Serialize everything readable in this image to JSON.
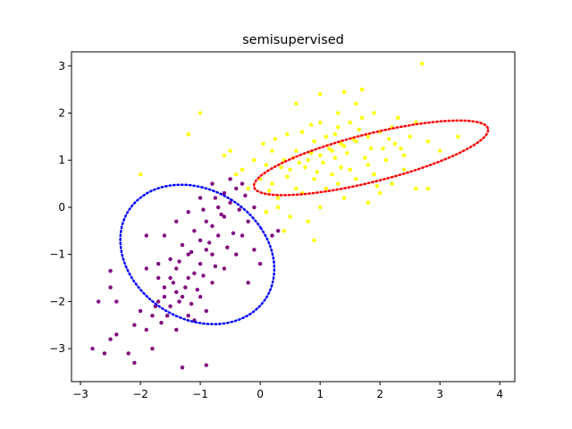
{
  "chart_data": {
    "type": "scatter",
    "title": "semisupervised",
    "xlabel": "",
    "ylabel": "",
    "xlim": [
      -3.15,
      4.25
    ],
    "ylim": [
      -3.7,
      3.3
    ],
    "xticks": [
      -3,
      -2,
      -1,
      0,
      1,
      2,
      3,
      4
    ],
    "yticks": [
      -3,
      -2,
      -1,
      0,
      1,
      2,
      3
    ],
    "grid": false,
    "legend": "none",
    "series": [
      {
        "color": "#800080",
        "values": [
          [
            -1.6,
            -1.9
          ],
          [
            -1.4,
            -1.8
          ],
          [
            -1.2,
            -1.5
          ],
          [
            -1.0,
            -1.2
          ],
          [
            -0.8,
            -1.0
          ],
          [
            -1.5,
            -2.1
          ],
          [
            -1.3,
            -1.9
          ],
          [
            -1.1,
            -1.4
          ],
          [
            -0.9,
            -0.9
          ],
          [
            -0.7,
            -0.6
          ],
          [
            -1.8,
            -2.3
          ],
          [
            -1.7,
            -2.0
          ],
          [
            -1.6,
            -1.7
          ],
          [
            -1.4,
            -1.3
          ],
          [
            -1.2,
            -1.0
          ],
          [
            -1.0,
            -0.7
          ],
          [
            -0.8,
            -0.4
          ],
          [
            -0.6,
            -0.2
          ],
          [
            -0.5,
            0.1
          ],
          [
            -0.4,
            0.4
          ],
          [
            -1.9,
            -2.6
          ],
          [
            -2.0,
            -2.2
          ],
          [
            -2.1,
            -2.5
          ],
          [
            -1.7,
            -1.5
          ],
          [
            -1.5,
            -1.1
          ],
          [
            -1.3,
            -0.8
          ],
          [
            -1.1,
            -0.5
          ],
          [
            -0.9,
            -0.3
          ],
          [
            -0.7,
            0.0
          ],
          [
            -0.6,
            0.3
          ],
          [
            -1.2,
            -2.3
          ],
          [
            -1.0,
            -1.9
          ],
          [
            -0.8,
            -1.6
          ],
          [
            -0.6,
            -1.3
          ],
          [
            -0.4,
            -1.0
          ],
          [
            -0.3,
            -0.6
          ],
          [
            -0.2,
            -0.3
          ],
          [
            -0.1,
            0.0
          ],
          [
            -0.3,
            0.5
          ],
          [
            -0.5,
            0.6
          ],
          [
            -2.8,
            -3.0
          ],
          [
            -2.6,
            -3.1
          ],
          [
            -2.5,
            -2.8
          ],
          [
            -2.2,
            -3.1
          ],
          [
            -2.1,
            -3.3
          ],
          [
            -1.8,
            -3.0
          ],
          [
            -1.3,
            -3.4
          ],
          [
            -0.9,
            -3.35
          ],
          [
            -2.5,
            -1.35
          ],
          [
            -2.5,
            -1.7
          ],
          [
            -2.4,
            -2.7
          ],
          [
            -2.7,
            -2.0
          ],
          [
            -2.4,
            -2.0
          ],
          [
            -1.4,
            -2.6
          ],
          [
            -1.1,
            -2.4
          ],
          [
            -0.9,
            -2.2
          ],
          [
            -1.6,
            -0.6
          ],
          [
            -1.9,
            -0.6
          ],
          [
            -1.4,
            -0.3
          ],
          [
            -1.2,
            -0.1
          ],
          [
            -1.0,
            0.2
          ],
          [
            -0.8,
            0.5
          ],
          [
            -0.2,
            -1.6
          ],
          [
            0.0,
            -1.2
          ],
          [
            0.2,
            -0.6
          ],
          [
            0.3,
            -0.5
          ],
          [
            -0.1,
            -0.9
          ],
          [
            -1.7,
            -1.2
          ],
          [
            -1.9,
            -1.3
          ],
          [
            -1.5,
            -1.5
          ],
          [
            -1.35,
            -2.0
          ],
          [
            -1.25,
            -1.7
          ],
          [
            -1.05,
            -1.75
          ],
          [
            -0.95,
            -1.45
          ],
          [
            -0.75,
            -1.25
          ],
          [
            -1.45,
            -1.6
          ],
          [
            -1.55,
            -2.3
          ],
          [
            -1.75,
            -2.1
          ],
          [
            -1.65,
            -2.45
          ],
          [
            -1.15,
            -2.05
          ],
          [
            -0.55,
            -0.85
          ],
          [
            -0.45,
            -0.55
          ],
          [
            -0.85,
            -0.75
          ],
          [
            -1.15,
            -0.95
          ],
          [
            -1.35,
            -1.15
          ],
          [
            -0.65,
            -0.15
          ],
          [
            -0.35,
            -0.05
          ],
          [
            -0.25,
            0.25
          ],
          [
            -0.75,
            0.2
          ],
          [
            -0.95,
            -0.05
          ]
        ]
      },
      {
        "color": "#ffff00",
        "values": [
          [
            0.2,
            0.5
          ],
          [
            0.5,
            0.8
          ],
          [
            0.8,
            1.0
          ],
          [
            1.0,
            1.1
          ],
          [
            1.2,
            1.2
          ],
          [
            1.4,
            1.3
          ],
          [
            1.6,
            1.4
          ],
          [
            1.8,
            1.5
          ],
          [
            2.0,
            1.6
          ],
          [
            2.2,
            1.7
          ],
          [
            0.4,
            1.0
          ],
          [
            0.6,
            1.2
          ],
          [
            0.9,
            1.4
          ],
          [
            1.1,
            1.5
          ],
          [
            1.3,
            1.7
          ],
          [
            1.5,
            1.8
          ],
          [
            1.7,
            1.9
          ],
          [
            1.9,
            2.0
          ],
          [
            0.3,
            0.2
          ],
          [
            0.6,
            0.4
          ],
          [
            0.9,
            0.6
          ],
          [
            1.2,
            0.7
          ],
          [
            1.5,
            0.8
          ],
          [
            1.8,
            0.9
          ],
          [
            2.1,
            1.0
          ],
          [
            2.4,
            1.1
          ],
          [
            0.0,
            0.6
          ],
          [
            0.1,
            0.9
          ],
          [
            0.2,
            1.2
          ],
          [
            -0.1,
            1.0
          ],
          [
            -0.3,
            0.8
          ],
          [
            -0.5,
            1.2
          ],
          [
            -0.6,
            1.1
          ],
          [
            0.7,
            1.6
          ],
          [
            1.0,
            1.8
          ],
          [
            1.3,
            2.0
          ],
          [
            1.6,
            2.2
          ],
          [
            1.7,
            2.5
          ],
          [
            1.4,
            2.45
          ],
          [
            0.6,
            2.2
          ],
          [
            1.0,
            2.4
          ],
          [
            2.7,
            3.05
          ],
          [
            -1.0,
            2.0
          ],
          [
            -1.2,
            1.55
          ],
          [
            -2.0,
            0.7
          ],
          [
            2.5,
            1.5
          ],
          [
            2.8,
            1.4
          ],
          [
            3.0,
            1.2
          ],
          [
            2.6,
            1.8
          ],
          [
            2.3,
            1.9
          ],
          [
            3.3,
            1.5
          ],
          [
            2.4,
            0.8
          ],
          [
            2.2,
            0.5
          ],
          [
            2.6,
            0.4
          ],
          [
            2.8,
            0.4
          ],
          [
            0.5,
            -0.2
          ],
          [
            0.8,
            -0.3
          ],
          [
            1.0,
            0.0
          ],
          [
            1.4,
            0.2
          ],
          [
            1.8,
            0.1
          ],
          [
            2.0,
            0.3
          ],
          [
            0.9,
            -0.7
          ],
          [
            0.4,
            -0.5
          ],
          [
            0.1,
            -0.1
          ],
          [
            0.3,
            0.0
          ],
          [
            0.7,
            0.3
          ],
          [
            1.1,
            0.4
          ],
          [
            1.3,
            0.5
          ],
          [
            1.6,
            0.6
          ],
          [
            1.9,
            0.7
          ],
          [
            0.45,
            0.65
          ],
          [
            0.75,
            0.85
          ],
          [
            1.05,
            0.95
          ],
          [
            1.25,
            1.05
          ],
          [
            1.45,
            1.15
          ],
          [
            0.55,
            1.05
          ],
          [
            0.85,
            1.15
          ],
          [
            1.15,
            1.25
          ],
          [
            1.35,
            1.35
          ],
          [
            1.55,
            1.45
          ],
          [
            0.35,
            0.85
          ],
          [
            0.65,
            0.95
          ],
          [
            0.95,
            0.75
          ],
          [
            1.35,
            0.85
          ],
          [
            1.75,
            1.05
          ],
          [
            2.05,
            1.25
          ],
          [
            2.25,
            1.35
          ],
          [
            1.85,
            1.25
          ],
          [
            0.25,
            1.45
          ],
          [
            0.15,
            0.35
          ],
          [
            -0.2,
            0.4
          ],
          [
            -0.4,
            0.7
          ],
          [
            0.05,
            1.35
          ],
          [
            0.45,
            1.55
          ],
          [
            0.85,
            1.75
          ],
          [
            1.25,
            1.55
          ],
          [
            1.65,
            1.65
          ],
          [
            2.15,
            1.45
          ],
          [
            2.35,
            1.25
          ],
          [
            1.95,
            0.45
          ]
        ]
      }
    ],
    "ellipses": [
      {
        "color": "#0000ff",
        "center": [
          -1.05,
          -1.0
        ],
        "rx": 1.2,
        "ry": 1.55,
        "angle": 28
      },
      {
        "color": "#ff0000",
        "center": [
          1.85,
          1.05
        ],
        "rx": 2.05,
        "ry": 0.5,
        "angle": 18
      }
    ]
  }
}
